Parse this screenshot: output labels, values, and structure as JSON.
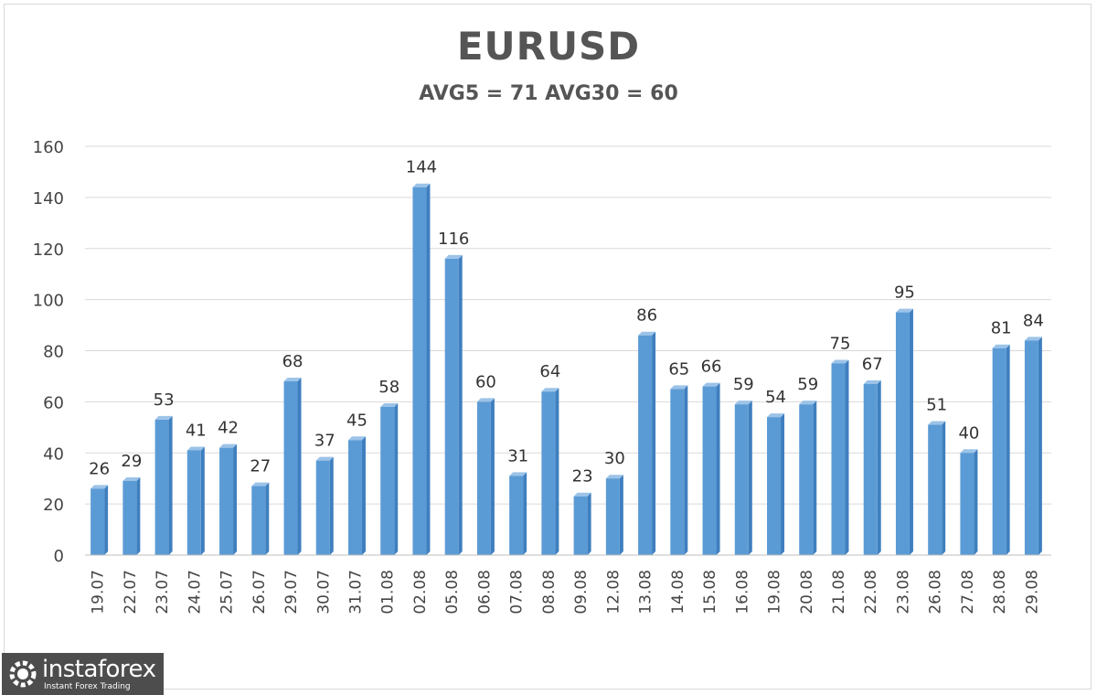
{
  "chart_data": {
    "type": "bar",
    "title": "EURUSD",
    "subtitle": "AVG5 = 71 AVG30 = 60",
    "categories": [
      "19.07",
      "22.07",
      "23.07",
      "24.07",
      "25.07",
      "26.07",
      "29.07",
      "30.07",
      "31.07",
      "01.08",
      "02.08",
      "05.08",
      "06.08",
      "07.08",
      "08.08",
      "09.08",
      "12.08",
      "13.08",
      "14.08",
      "15.08",
      "16.08",
      "19.08",
      "20.08",
      "21.08",
      "22.08",
      "23.08",
      "26.08",
      "27.08",
      "28.08",
      "29.08"
    ],
    "values": [
      26,
      29,
      53,
      41,
      42,
      27,
      68,
      37,
      45,
      58,
      144,
      116,
      60,
      31,
      64,
      23,
      30,
      86,
      65,
      66,
      59,
      54,
      59,
      75,
      67,
      95,
      51,
      40,
      81,
      84
    ],
    "ylim": [
      0,
      160
    ],
    "yticks": [
      0,
      20,
      40,
      60,
      80,
      100,
      120,
      140,
      160
    ],
    "grid": true,
    "bar_color": "#5b9bd5",
    "bar_dark": "#3f7fbf",
    "bar_light": "#9cc3e8"
  },
  "watermark": {
    "brand": "instaforex",
    "tagline": "Instant Forex Trading"
  }
}
